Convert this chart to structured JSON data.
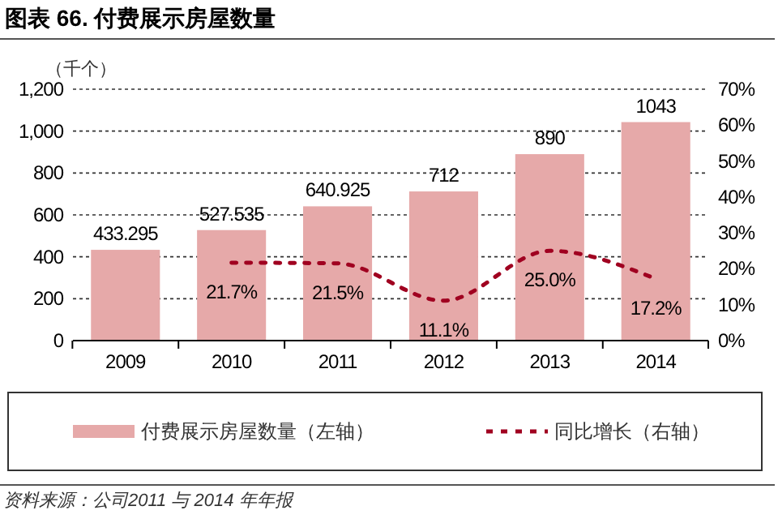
{
  "chart_data": {
    "type": "bar",
    "title": "图表 66. 付费展示房屋数量",
    "ylabel": "（千个）",
    "categories": [
      "2009",
      "2010",
      "2011",
      "2012",
      "2013",
      "2014"
    ],
    "series": [
      {
        "name": "付费展示房屋数量（左轴）",
        "color": "#e6a9a9",
        "values": [
          433.295,
          527.535,
          640.925,
          712,
          890,
          1043
        ]
      },
      {
        "name": "同比增长（右轴）",
        "type": "line",
        "axis": "y2",
        "color": "#a00020",
        "line_style": "dotted",
        "marker": "none",
        "values": [
          null,
          21.7,
          21.5,
          11.1,
          25.0,
          17.2
        ],
        "value_labels": [
          null,
          "21.7%",
          "21.5%",
          "11.1%",
          "25.0%",
          "17.2%"
        ]
      }
    ],
    "ylim": [
      0,
      1200
    ],
    "yticks": [
      0,
      200,
      400,
      600,
      800,
      {
        "value": 1000,
        "label": "1,000"
      },
      {
        "value": 1200,
        "label": "1,200"
      }
    ],
    "y2lim": [
      0,
      70
    ],
    "y2ticks": [
      {
        "value": 0,
        "label": "0%"
      },
      {
        "value": 10,
        "label": "10%"
      },
      {
        "value": 20,
        "label": "20%"
      },
      {
        "value": 30,
        "label": "30%"
      },
      {
        "value": 40,
        "label": "40%"
      },
      {
        "value": 50,
        "label": "50%"
      },
      {
        "value": 60,
        "label": "60%"
      },
      {
        "value": 70,
        "label": "70%"
      }
    ],
    "grid": "y",
    "legend": "bottom",
    "data_labels": true,
    "annotations": [
      "资料来源：公司2011 与 2014 年年报"
    ]
  }
}
